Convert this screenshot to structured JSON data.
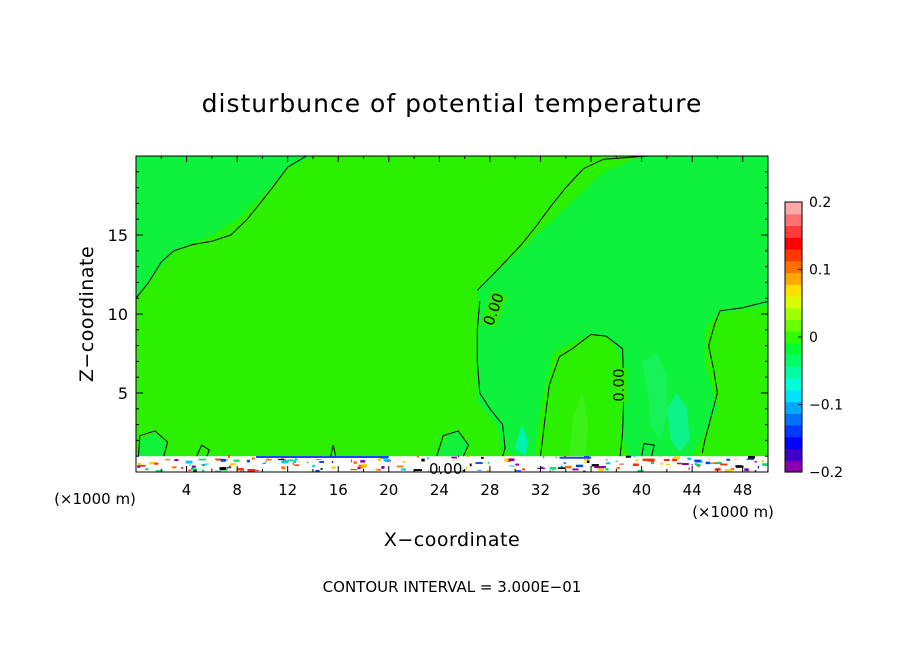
{
  "chart_data": {
    "type": "heatmap",
    "title": "disturbunce of potential temperature",
    "xlabel": "X−coordinate",
    "ylabel": "Z−coordinate",
    "x_unit_left": "(×1000 m)",
    "x_unit_right": "(×1000 m)",
    "xlim": [
      0,
      50
    ],
    "ylim": [
      0,
      20
    ],
    "x_ticks": [
      4,
      8,
      12,
      16,
      20,
      24,
      28,
      32,
      36,
      40,
      44,
      48
    ],
    "y_ticks": [
      5,
      10,
      15
    ],
    "contour_labels": [
      "0.00",
      "0.00",
      "0.00"
    ],
    "footer": "CONTOUR INTERVAL = 3.000E−01",
    "colorbar": {
      "ticks": [
        {
          "value": 0.2,
          "label": "0.2"
        },
        {
          "value": 0.1,
          "label": "0.1"
        },
        {
          "value": 0,
          "label": "0"
        },
        {
          "value": -0.1,
          "label": "−0.1"
        },
        {
          "value": -0.2,
          "label": "−0.2"
        }
      ],
      "range": [
        -0.2,
        0.2
      ],
      "colors": [
        "#8b00b0",
        "#3f00c8",
        "#0000ff",
        "#0038ff",
        "#0070ff",
        "#00a8ff",
        "#00e0ff",
        "#00ffd8",
        "#00ffa0",
        "#00ff68",
        "#00ff30",
        "#30ff00",
        "#68ff00",
        "#a0ff00",
        "#d8ff00",
        "#ffe000",
        "#ffa800",
        "#ff7000",
        "#ff3800",
        "#ff0000",
        "#ff3a3a",
        "#ff7070",
        "#ffa8a8"
      ]
    },
    "background_color": "#2bf000",
    "regions": [
      {
        "color": "#0ef23c",
        "poly": [
          [
            0,
            11
          ],
          [
            1.5,
            12.5
          ],
          [
            3,
            14
          ],
          [
            6,
            15
          ],
          [
            8,
            16
          ],
          [
            10,
            17.5
          ],
          [
            12,
            19.2
          ],
          [
            14,
            20
          ],
          [
            0,
            20
          ]
        ]
      },
      {
        "color": "#0ef23c",
        "poly": [
          [
            27,
            11.5
          ],
          [
            29,
            13
          ],
          [
            31,
            14.5
          ],
          [
            33,
            16
          ],
          [
            35,
            17.5
          ],
          [
            37,
            19
          ],
          [
            40,
            20
          ],
          [
            50,
            20
          ],
          [
            50,
            10.5
          ],
          [
            48,
            10.3
          ],
          [
            46,
            10
          ],
          [
            45,
            9
          ],
          [
            45,
            7
          ],
          [
            46,
            4
          ],
          [
            44,
            1
          ],
          [
            42,
            1
          ],
          [
            40,
            1
          ],
          [
            39,
            1
          ],
          [
            38.5,
            2
          ],
          [
            38.5,
            7
          ],
          [
            37.5,
            8.5
          ],
          [
            36,
            8.7
          ],
          [
            34,
            8
          ],
          [
            33,
            7.5
          ],
          [
            32,
            4
          ],
          [
            31.5,
            1
          ],
          [
            30,
            1
          ],
          [
            29,
            1.5
          ],
          [
            28.5,
            3
          ],
          [
            27,
            4.5
          ],
          [
            27,
            8
          ],
          [
            27.2,
            10
          ]
        ]
      },
      {
        "color": "#16f258",
        "poly": [
          [
            40,
            7
          ],
          [
            40.5,
            5
          ],
          [
            40.7,
            3
          ],
          [
            41.5,
            2
          ],
          [
            42,
            3.5
          ],
          [
            42,
            6
          ],
          [
            41.3,
            7.5
          ]
        ]
      },
      {
        "color": "#0ef28a",
        "poly": [
          [
            42,
            4
          ],
          [
            42.3,
            2
          ],
          [
            43,
            1.3
          ],
          [
            43.8,
            2
          ],
          [
            43.6,
            4
          ],
          [
            42.8,
            5
          ]
        ]
      },
      {
        "color": "#3af21a",
        "poly": [
          [
            34.3,
            1
          ],
          [
            34.6,
            3.5
          ],
          [
            35.3,
            5
          ],
          [
            35.8,
            3
          ],
          [
            35.5,
            1
          ]
        ]
      },
      {
        "color": "#00f2b0",
        "poly": [
          [
            30,
            1.5
          ],
          [
            30.5,
            3
          ],
          [
            31,
            2
          ],
          [
            30.8,
            1
          ]
        ]
      },
      {
        "color": "#11f23a",
        "poly": [
          [
            0.2,
            1
          ],
          [
            0.2,
            2
          ],
          [
            1.5,
            2.5
          ],
          [
            2.5,
            1.7
          ],
          [
            2,
            1
          ]
        ]
      },
      {
        "color": "#11f23a",
        "poly": [
          [
            23.8,
            1
          ],
          [
            24.5,
            2.2
          ],
          [
            25.5,
            2.6
          ],
          [
            26.3,
            1.7
          ],
          [
            26,
            1
          ]
        ]
      }
    ],
    "contours": [
      [
        [
          0,
          11
        ],
        [
          1,
          12
        ],
        [
          2,
          13.3
        ],
        [
          3,
          14
        ],
        [
          4.5,
          14.4
        ],
        [
          6,
          14.6
        ],
        [
          7.5,
          15
        ],
        [
          8.8,
          16
        ],
        [
          9.8,
          17
        ],
        [
          10.8,
          18
        ],
        [
          12,
          19.3
        ],
        [
          13.5,
          20
        ]
      ],
      [
        [
          27,
          11.5
        ],
        [
          28,
          12.3
        ],
        [
          29.2,
          13.3
        ],
        [
          30.5,
          14.4
        ],
        [
          31.7,
          15.6
        ],
        [
          32.8,
          16.8
        ],
        [
          34,
          18
        ],
        [
          35.4,
          19.2
        ],
        [
          37,
          19.8
        ],
        [
          40.5,
          20
        ]
      ],
      [
        [
          27.2,
          10.8
        ],
        [
          27,
          9
        ],
        [
          27,
          7
        ],
        [
          27.2,
          5
        ],
        [
          28,
          4
        ],
        [
          29,
          3
        ],
        [
          29.2,
          1.5
        ],
        [
          29,
          1
        ]
      ],
      [
        [
          32,
          1
        ],
        [
          32.3,
          3
        ],
        [
          32.7,
          5.5
        ],
        [
          33.5,
          7.3
        ],
        [
          34.5,
          7.8
        ],
        [
          36,
          8.7
        ],
        [
          37.2,
          8.6
        ],
        [
          38.5,
          7.8
        ],
        [
          38.6,
          5
        ],
        [
          38.5,
          2.5
        ],
        [
          38.3,
          1
        ]
      ],
      [
        [
          50,
          10.8
        ],
        [
          48,
          10.4
        ],
        [
          46.2,
          10.2
        ],
        [
          45.8,
          9.4
        ],
        [
          45.3,
          8
        ],
        [
          45.7,
          6.5
        ],
        [
          46,
          5
        ],
        [
          45.5,
          3.5
        ],
        [
          45,
          2
        ],
        [
          44.8,
          1.2
        ]
      ],
      [
        [
          0.2,
          1
        ],
        [
          0.3,
          2.3
        ],
        [
          1.5,
          2.6
        ],
        [
          2.5,
          1.9
        ],
        [
          2.2,
          1
        ]
      ],
      [
        [
          4.8,
          1
        ],
        [
          5.2,
          1.7
        ],
        [
          5.8,
          1.4
        ],
        [
          5.6,
          1
        ]
      ],
      [
        [
          23.8,
          1
        ],
        [
          24.3,
          2.3
        ],
        [
          25.5,
          2.6
        ],
        [
          26.3,
          1.7
        ],
        [
          25.9,
          1
        ]
      ],
      [
        [
          40,
          1
        ],
        [
          40.2,
          1.8
        ],
        [
          41,
          1.7
        ],
        [
          40.8,
          1
        ]
      ],
      [
        [
          15.4,
          1
        ],
        [
          15.6,
          1.7
        ],
        [
          15.8,
          1
        ]
      ]
    ]
  }
}
